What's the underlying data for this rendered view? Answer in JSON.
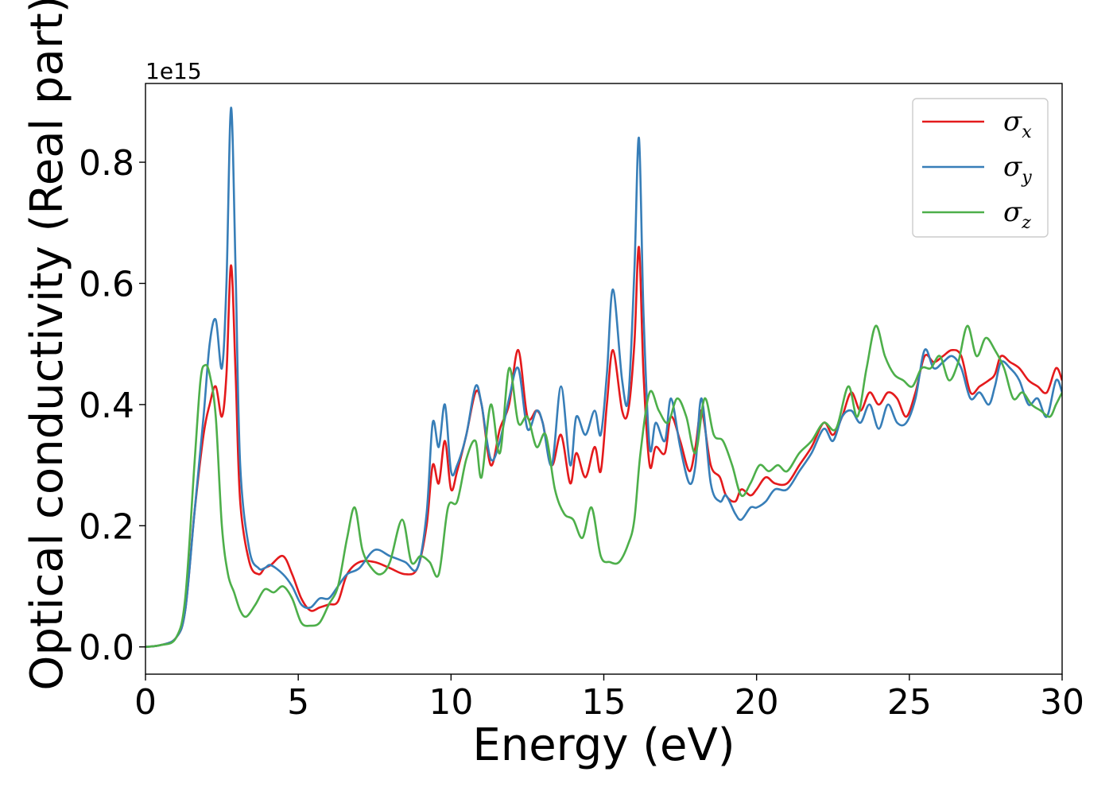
{
  "chart_data": {
    "type": "line",
    "xlabel": "Energy (eV)",
    "ylabel": "Optical conductivity (Real part)",
    "offset_text": "1e15",
    "xlim": [
      0,
      30
    ],
    "ylim": [
      -0.045,
      0.93
    ],
    "xticks": [
      0,
      5,
      10,
      15,
      20,
      25,
      30
    ],
    "yticks": [
      0.0,
      0.2,
      0.4,
      0.6,
      0.8
    ],
    "ytick_labels": [
      "0.0",
      "0.2",
      "0.4",
      "0.6",
      "0.8"
    ],
    "grid": false,
    "legend_position": "top-right",
    "series": [
      {
        "name": "σx",
        "name_base": "σ",
        "name_sub": "x",
        "color": "#e41a1c",
        "x": [
          0,
          0.5,
          1.0,
          1.3,
          1.6,
          1.9,
          2.1,
          2.3,
          2.5,
          2.65,
          2.8,
          2.95,
          3.1,
          3.4,
          3.7,
          3.9,
          4.1,
          4.5,
          4.8,
          5.1,
          5.4,
          5.7,
          6.0,
          6.3,
          6.6,
          7.0,
          7.5,
          8.0,
          8.5,
          8.9,
          9.2,
          9.4,
          9.6,
          9.8,
          10.0,
          10.2,
          10.5,
          10.8,
          11.0,
          11.3,
          11.6,
          11.9,
          12.2,
          12.5,
          12.8,
          13.0,
          13.3,
          13.6,
          13.9,
          14.1,
          14.4,
          14.7,
          14.9,
          15.1,
          15.3,
          15.6,
          15.8,
          16.0,
          16.15,
          16.3,
          16.5,
          16.7,
          17.0,
          17.2,
          17.5,
          17.8,
          18.0,
          18.2,
          18.5,
          18.8,
          19.0,
          19.3,
          19.5,
          19.8,
          20.0,
          20.3,
          20.6,
          21.0,
          21.4,
          21.8,
          22.2,
          22.5,
          22.8,
          23.1,
          23.4,
          23.7,
          24.0,
          24.3,
          24.6,
          24.9,
          25.2,
          25.5,
          25.8,
          26.1,
          26.4,
          26.7,
          27.0,
          27.3,
          27.6,
          27.8,
          28.0,
          28.3,
          28.6,
          28.9,
          29.2,
          29.5,
          29.8,
          30.0
        ],
        "values": [
          0,
          0.003,
          0.015,
          0.06,
          0.22,
          0.35,
          0.4,
          0.43,
          0.38,
          0.45,
          0.63,
          0.45,
          0.24,
          0.14,
          0.12,
          0.13,
          0.135,
          0.15,
          0.12,
          0.08,
          0.06,
          0.065,
          0.07,
          0.075,
          0.12,
          0.14,
          0.14,
          0.13,
          0.12,
          0.13,
          0.2,
          0.3,
          0.27,
          0.34,
          0.26,
          0.29,
          0.35,
          0.42,
          0.4,
          0.3,
          0.36,
          0.4,
          0.49,
          0.38,
          0.39,
          0.37,
          0.3,
          0.35,
          0.27,
          0.32,
          0.28,
          0.33,
          0.29,
          0.4,
          0.49,
          0.39,
          0.39,
          0.5,
          0.66,
          0.45,
          0.3,
          0.33,
          0.32,
          0.38,
          0.34,
          0.29,
          0.33,
          0.39,
          0.3,
          0.28,
          0.25,
          0.24,
          0.26,
          0.25,
          0.26,
          0.28,
          0.27,
          0.27,
          0.3,
          0.33,
          0.37,
          0.35,
          0.38,
          0.42,
          0.39,
          0.42,
          0.4,
          0.42,
          0.41,
          0.38,
          0.42,
          0.48,
          0.47,
          0.48,
          0.49,
          0.48,
          0.42,
          0.43,
          0.44,
          0.45,
          0.48,
          0.47,
          0.46,
          0.44,
          0.43,
          0.42,
          0.46,
          0.44
        ]
      },
      {
        "name": "σy",
        "name_base": "σ",
        "name_sub": "y",
        "color": "#377eb8",
        "x": [
          0,
          0.5,
          1.0,
          1.3,
          1.6,
          1.9,
          2.1,
          2.3,
          2.5,
          2.65,
          2.8,
          2.95,
          3.1,
          3.4,
          3.7,
          3.9,
          4.1,
          4.5,
          4.8,
          5.1,
          5.4,
          5.7,
          6.0,
          6.3,
          6.6,
          7.0,
          7.5,
          8.0,
          8.5,
          8.9,
          9.2,
          9.4,
          9.6,
          9.8,
          10.0,
          10.2,
          10.5,
          10.8,
          11.0,
          11.3,
          11.6,
          11.9,
          12.2,
          12.5,
          12.8,
          13.0,
          13.3,
          13.6,
          13.9,
          14.1,
          14.4,
          14.7,
          14.9,
          15.1,
          15.3,
          15.6,
          15.8,
          16.0,
          16.15,
          16.3,
          16.5,
          16.7,
          17.0,
          17.2,
          17.5,
          17.8,
          18.0,
          18.2,
          18.5,
          18.8,
          19.0,
          19.3,
          19.5,
          19.8,
          20.0,
          20.3,
          20.6,
          21.0,
          21.4,
          21.8,
          22.2,
          22.5,
          22.8,
          23.1,
          23.4,
          23.7,
          24.0,
          24.3,
          24.6,
          24.9,
          25.2,
          25.5,
          25.8,
          26.1,
          26.4,
          26.7,
          27.0,
          27.3,
          27.6,
          27.8,
          28.0,
          28.3,
          28.6,
          28.9,
          29.2,
          29.5,
          29.8,
          30.0
        ],
        "values": [
          0,
          0.003,
          0.015,
          0.06,
          0.22,
          0.38,
          0.5,
          0.54,
          0.46,
          0.6,
          0.89,
          0.62,
          0.3,
          0.16,
          0.13,
          0.13,
          0.135,
          0.12,
          0.1,
          0.07,
          0.065,
          0.08,
          0.08,
          0.1,
          0.12,
          0.13,
          0.16,
          0.15,
          0.14,
          0.13,
          0.22,
          0.37,
          0.33,
          0.4,
          0.29,
          0.3,
          0.35,
          0.43,
          0.4,
          0.31,
          0.34,
          0.41,
          0.46,
          0.36,
          0.39,
          0.37,
          0.3,
          0.43,
          0.3,
          0.38,
          0.35,
          0.39,
          0.35,
          0.45,
          0.59,
          0.44,
          0.41,
          0.62,
          0.84,
          0.55,
          0.33,
          0.37,
          0.34,
          0.41,
          0.33,
          0.27,
          0.3,
          0.41,
          0.27,
          0.24,
          0.25,
          0.22,
          0.21,
          0.23,
          0.23,
          0.24,
          0.26,
          0.26,
          0.29,
          0.32,
          0.36,
          0.34,
          0.38,
          0.39,
          0.37,
          0.4,
          0.36,
          0.4,
          0.37,
          0.37,
          0.41,
          0.49,
          0.46,
          0.47,
          0.48,
          0.46,
          0.41,
          0.42,
          0.4,
          0.43,
          0.47,
          0.46,
          0.44,
          0.4,
          0.41,
          0.38,
          0.44,
          0.42
        ]
      },
      {
        "name": "σz",
        "name_base": "σ",
        "name_sub": "z",
        "color": "#4daf4a",
        "x": [
          0,
          0.5,
          1.0,
          1.3,
          1.6,
          1.8,
          1.95,
          2.1,
          2.3,
          2.5,
          2.7,
          2.9,
          3.1,
          3.3,
          3.6,
          3.9,
          4.2,
          4.5,
          4.8,
          5.1,
          5.4,
          5.7,
          6.0,
          6.3,
          6.6,
          6.85,
          7.1,
          7.4,
          7.7,
          8.0,
          8.4,
          8.7,
          9.0,
          9.3,
          9.6,
          9.9,
          10.2,
          10.5,
          10.8,
          11.0,
          11.3,
          11.6,
          11.9,
          12.2,
          12.5,
          12.8,
          13.1,
          13.4,
          13.7,
          14.0,
          14.3,
          14.6,
          14.9,
          15.2,
          15.5,
          15.8,
          16.0,
          16.2,
          16.5,
          16.8,
          17.1,
          17.4,
          17.7,
          18.0,
          18.3,
          18.6,
          18.9,
          19.2,
          19.5,
          19.8,
          20.1,
          20.4,
          20.7,
          21.0,
          21.4,
          21.8,
          22.2,
          22.6,
          23.0,
          23.3,
          23.6,
          23.9,
          24.2,
          24.5,
          24.8,
          25.1,
          25.4,
          25.7,
          26.0,
          26.3,
          26.6,
          26.9,
          27.2,
          27.5,
          27.8,
          28.1,
          28.4,
          28.7,
          29.0,
          29.3,
          29.6,
          29.8,
          30.0
        ],
        "values": [
          0,
          0.003,
          0.015,
          0.08,
          0.3,
          0.44,
          0.465,
          0.45,
          0.38,
          0.2,
          0.12,
          0.09,
          0.06,
          0.05,
          0.07,
          0.095,
          0.09,
          0.1,
          0.08,
          0.04,
          0.035,
          0.04,
          0.07,
          0.1,
          0.18,
          0.23,
          0.16,
          0.13,
          0.12,
          0.14,
          0.21,
          0.14,
          0.15,
          0.14,
          0.12,
          0.23,
          0.24,
          0.31,
          0.34,
          0.28,
          0.4,
          0.32,
          0.46,
          0.37,
          0.38,
          0.33,
          0.35,
          0.26,
          0.22,
          0.21,
          0.18,
          0.23,
          0.15,
          0.14,
          0.14,
          0.17,
          0.21,
          0.32,
          0.42,
          0.39,
          0.37,
          0.41,
          0.38,
          0.32,
          0.41,
          0.35,
          0.34,
          0.3,
          0.25,
          0.27,
          0.3,
          0.29,
          0.3,
          0.29,
          0.32,
          0.34,
          0.37,
          0.36,
          0.43,
          0.38,
          0.46,
          0.53,
          0.48,
          0.45,
          0.44,
          0.43,
          0.46,
          0.46,
          0.48,
          0.44,
          0.47,
          0.53,
          0.48,
          0.51,
          0.49,
          0.46,
          0.41,
          0.42,
          0.4,
          0.39,
          0.38,
          0.4,
          0.42
        ]
      }
    ]
  }
}
